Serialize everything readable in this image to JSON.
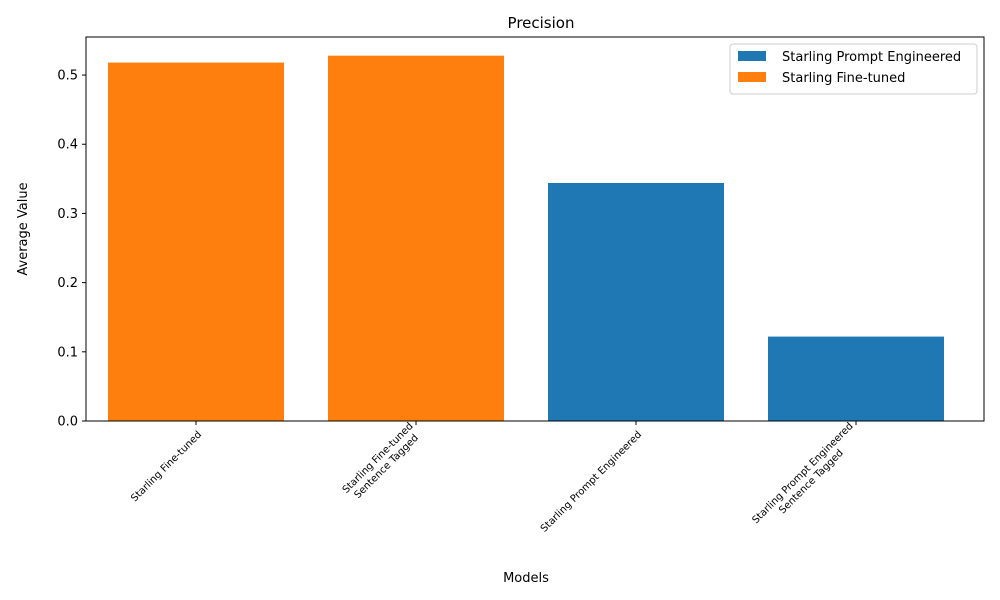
{
  "chart_data": {
    "type": "bar",
    "title": "Precision",
    "xlabel": "Models",
    "ylabel": "Average Value",
    "ylim": [
      0,
      0.555
    ],
    "yticks": [
      0.0,
      0.1,
      0.2,
      0.3,
      0.4,
      0.5
    ],
    "ytick_labels": [
      "0.0",
      "0.1",
      "0.2",
      "0.3",
      "0.4",
      "0.5"
    ],
    "grid": false,
    "legend_position": "top-right",
    "categories": [
      [
        "Starling Fine-tuned"
      ],
      [
        "Starling Fine-tuned",
        "Sentence Tagged"
      ],
      [
        "Starling Prompt Engineered"
      ],
      [
        "Starling Prompt Engineered",
        "Sentence Tagged"
      ]
    ],
    "values": [
      0.518,
      0.528,
      0.344,
      0.122
    ],
    "bar_series": [
      1,
      1,
      0,
      0
    ],
    "series": [
      {
        "name": "Starling Prompt Engineered",
        "color": "#1f77b4"
      },
      {
        "name": "Starling Fine-tuned",
        "color": "#ff7f0e"
      }
    ]
  }
}
